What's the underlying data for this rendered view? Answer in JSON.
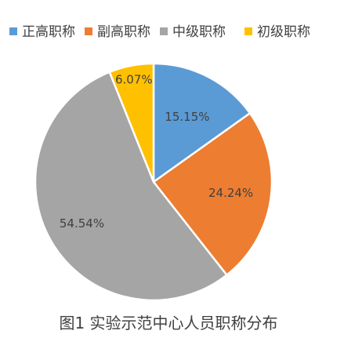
{
  "chart_data": {
    "type": "pie",
    "title": "",
    "caption": "图1 实验示范中心人员职称分布",
    "legend_position": "top",
    "categories": [
      "正高职称",
      "副高职称",
      "中级职称",
      "初级职称"
    ],
    "values": [
      15.15,
      24.24,
      54.54,
      6.07
    ],
    "labels": [
      "15.15%",
      "24.24%",
      "54.54%",
      "6.07%"
    ],
    "colors": [
      "#5B9BD5",
      "#ED7D31",
      "#A5A5A5",
      "#FFC000"
    ]
  }
}
